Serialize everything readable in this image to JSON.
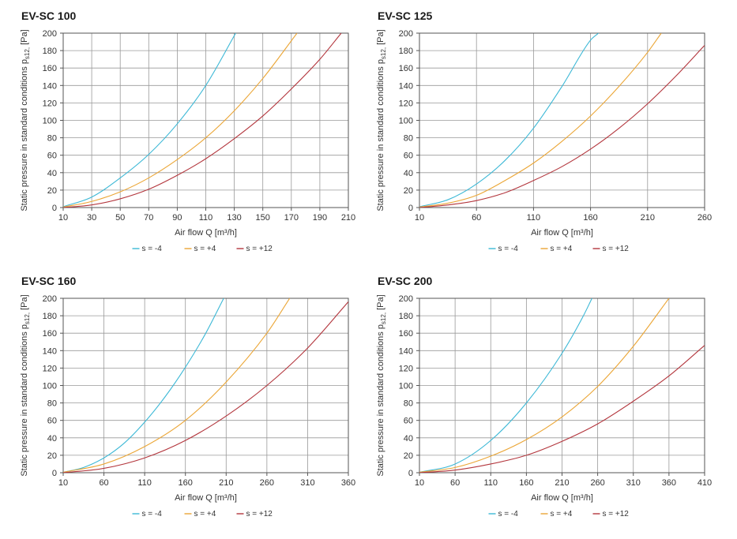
{
  "chart_data": [
    {
      "type": "line",
      "title": "EV-SC 100",
      "xlabel": "Air flow Q [m³/h]",
      "ylabel": "Static pressure in standard conditions p_s12, [Pa]",
      "ylabel_parts": {
        "main": "Static pressure in standard conditions p",
        "sub": "s12,",
        "unit": " [Pa]"
      },
      "xlim": [
        10,
        210
      ],
      "ylim": [
        0,
        200
      ],
      "xticks": [
        10,
        30,
        50,
        70,
        90,
        110,
        130,
        150,
        170,
        190,
        210
      ],
      "yticks": [
        0,
        20,
        40,
        60,
        80,
        100,
        120,
        140,
        160,
        180,
        200
      ],
      "grid": true,
      "legend": "bottom",
      "series": [
        {
          "name": "s = -4",
          "color": "#3cb8d6",
          "x": [
            10,
            30,
            50,
            70,
            90,
            110,
            131
          ],
          "y": [
            1,
            12,
            34,
            61,
            96,
            140,
            200
          ]
        },
        {
          "name": "s = +4",
          "color": "#eba636",
          "x": [
            10,
            30,
            50,
            70,
            90,
            110,
            130,
            150,
            174
          ],
          "y": [
            0.5,
            7,
            18,
            34,
            55,
            80,
            111,
            148,
            200
          ]
        },
        {
          "name": "s = +12",
          "color": "#b3363d",
          "x": [
            10,
            30,
            50,
            70,
            90,
            110,
            130,
            150,
            170,
            190,
            205
          ],
          "y": [
            0,
            3,
            10,
            21,
            37,
            56,
            79,
            105,
            136,
            170,
            200
          ]
        }
      ]
    },
    {
      "type": "line",
      "title": "EV-SC 125",
      "xlabel": "Air flow Q [m³/h]",
      "ylabel": "Static pressure in standard conditions p_s12, [Pa]",
      "ylabel_parts": {
        "main": "Static pressure in standard conditions p",
        "sub": "s12,",
        "unit": " [Pa]"
      },
      "xlim": [
        10,
        260
      ],
      "ylim": [
        0,
        200
      ],
      "xticks": [
        10,
        60,
        110,
        160,
        210,
        260
      ],
      "yticks": [
        0,
        20,
        40,
        60,
        80,
        100,
        120,
        140,
        160,
        180,
        200
      ],
      "grid": true,
      "legend": "bottom",
      "series": [
        {
          "name": "s = -4",
          "color": "#3cb8d6",
          "x": [
            10,
            35,
            60,
            85,
            110,
            135,
            160,
            167
          ],
          "y": [
            1,
            9,
            27,
            54,
            91,
            139,
            192,
            200
          ]
        },
        {
          "name": "s = +4",
          "color": "#eba636",
          "x": [
            10,
            35,
            60,
            85,
            110,
            135,
            160,
            185,
            210,
            222
          ],
          "y": [
            0.5,
            5,
            14,
            31,
            51,
            76,
            105,
            139,
            178,
            200
          ]
        },
        {
          "name": "s = +12",
          "color": "#b3363d",
          "x": [
            10,
            35,
            60,
            85,
            110,
            135,
            160,
            185,
            210,
            235,
            260
          ],
          "y": [
            0,
            3,
            8,
            17,
            31,
            47,
            67,
            91,
            119,
            151,
            186
          ]
        }
      ]
    },
    {
      "type": "line",
      "title": "EV-SC 160",
      "xlabel": "Air flow Q [m³/h]",
      "ylabel": "Static pressure in standard conditions p_s12, [Pa]",
      "ylabel_parts": {
        "main": "Static pressure in standard conditions p",
        "sub": "s12,",
        "unit": " [Pa]"
      },
      "xlim": [
        10,
        360
      ],
      "ylim": [
        0,
        200
      ],
      "xticks": [
        10,
        60,
        110,
        160,
        210,
        260,
        310,
        360
      ],
      "yticks": [
        0,
        20,
        40,
        60,
        80,
        100,
        120,
        140,
        160,
        180,
        200
      ],
      "grid": true,
      "legend": "bottom",
      "series": [
        {
          "name": "s = -4",
          "color": "#3cb8d6",
          "x": [
            10,
            35,
            60,
            85,
            110,
            135,
            160,
            185,
            207
          ],
          "y": [
            0.5,
            6,
            17,
            34,
            58,
            87,
            121,
            160,
            200
          ]
        },
        {
          "name": "s = +4",
          "color": "#eba636",
          "x": [
            10,
            60,
            110,
            160,
            210,
            260,
            288
          ],
          "y": [
            0.5,
            10,
            30,
            60,
            104,
            160,
            200
          ]
        },
        {
          "name": "s = +12",
          "color": "#b3363d",
          "x": [
            10,
            60,
            110,
            160,
            210,
            260,
            310,
            360
          ],
          "y": [
            0,
            5,
            17,
            37,
            65,
            100,
            143,
            196
          ]
        }
      ]
    },
    {
      "type": "line",
      "title": "EV-SC 200",
      "xlabel": "Air flow Q [m³/h]",
      "ylabel": "Static pressure in standard conditions p_s12, [Pa]",
      "ylabel_parts": {
        "main": "Static pressure in standard conditions p",
        "sub": "s12,",
        "unit": " [Pa]"
      },
      "xlim": [
        10,
        410
      ],
      "ylim": [
        0,
        200
      ],
      "xticks": [
        10,
        60,
        110,
        160,
        210,
        260,
        310,
        360,
        410
      ],
      "yticks": [
        0,
        20,
        40,
        60,
        80,
        100,
        120,
        140,
        160,
        180,
        200
      ],
      "grid": true,
      "legend": "bottom",
      "series": [
        {
          "name": "s = -4",
          "color": "#3cb8d6",
          "x": [
            10,
            60,
            110,
            160,
            210,
            240,
            252
          ],
          "y": [
            0.5,
            10,
            37,
            80,
            137,
            180,
            200
          ]
        },
        {
          "name": "s = +4",
          "color": "#eba636",
          "x": [
            10,
            60,
            110,
            160,
            210,
            260,
            310,
            360
          ],
          "y": [
            0.5,
            6,
            19,
            38,
            64,
            99,
            145,
            200
          ]
        },
        {
          "name": "s = +12",
          "color": "#b3363d",
          "x": [
            10,
            60,
            110,
            160,
            210,
            260,
            310,
            360,
            410
          ],
          "y": [
            0,
            3,
            10,
            20,
            36,
            56,
            82,
            111,
            146
          ]
        }
      ]
    }
  ]
}
